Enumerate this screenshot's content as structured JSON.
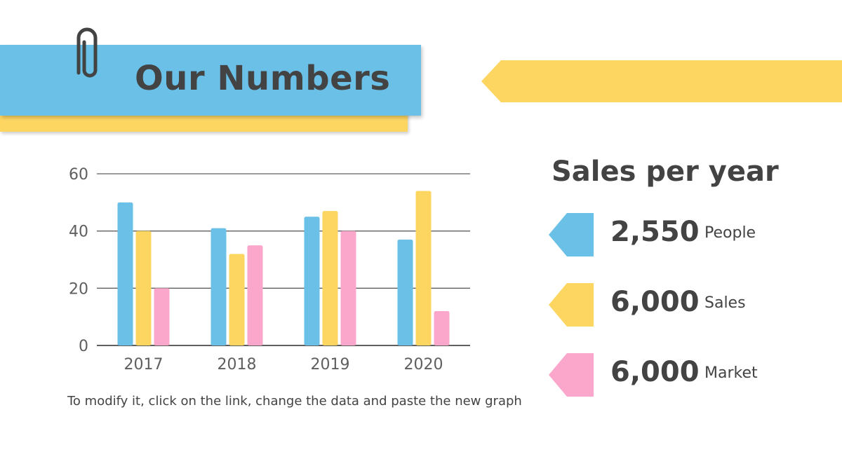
{
  "title": "Our Numbers",
  "note": "To modify it, click on the link, change the data and paste the new graph",
  "sales_heading": "Sales per year",
  "stats": [
    {
      "value": "2,550",
      "label": "People",
      "color": "#6ac0e7"
    },
    {
      "value": "6,000",
      "label": "Sales",
      "color": "#fdd662"
    },
    {
      "value": "6,000",
      "label": "Market",
      "color": "#fba7cb"
    }
  ],
  "colors": {
    "blue": "#6ac0e7",
    "yellow": "#fdd662",
    "pink": "#fba7cb",
    "text": "#434343"
  },
  "icons": {
    "clip": "paperclip-icon"
  },
  "chart_data": {
    "type": "bar",
    "categories": [
      "2017",
      "2018",
      "2019",
      "2020"
    ],
    "series": [
      {
        "values": [
          50,
          41,
          45,
          37
        ],
        "color": "#6ac0e7"
      },
      {
        "values": [
          40,
          32,
          47,
          54
        ],
        "color": "#fdd662"
      },
      {
        "values": [
          20,
          35,
          40,
          12
        ],
        "color": "#fba7cb"
      }
    ],
    "yticks": [
      0,
      20,
      40,
      60
    ],
    "ylim": [
      0,
      60
    ],
    "grid": true,
    "title": "",
    "xlabel": "",
    "ylabel": ""
  }
}
